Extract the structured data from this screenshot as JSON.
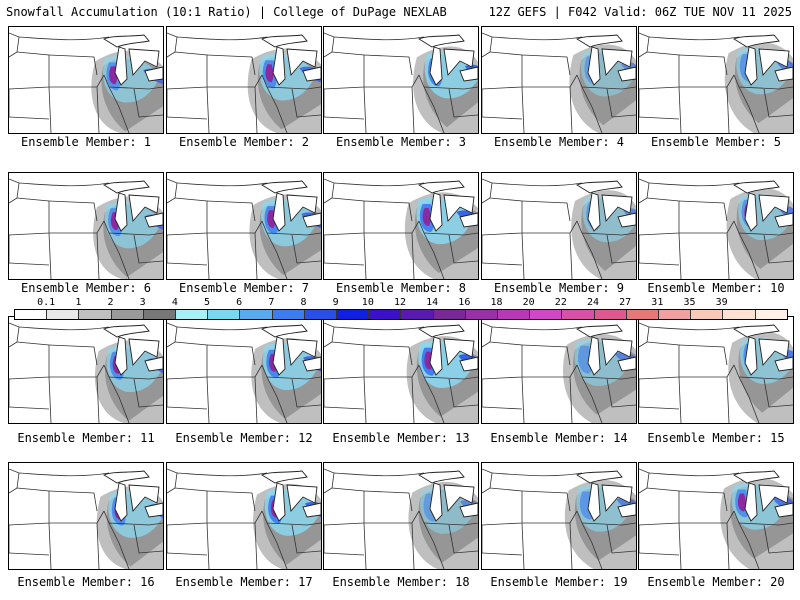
{
  "header": {
    "left_title": "Snowfall Accumulation (10:1 Ratio) | College of DuPage NEXLAB",
    "right_title": "12Z GEFS | F042 Valid: 06Z TUE NOV 11 2025"
  },
  "colorbar": {
    "tick_labels": [
      "0.1",
      "1",
      "2",
      "3",
      "4",
      "5",
      "6",
      "7",
      "8",
      "9",
      "10",
      "12",
      "14",
      "16",
      "18",
      "20",
      "22",
      "24",
      "27",
      "31",
      "35",
      "39"
    ],
    "colors": [
      "#ffffff",
      "#e8e8e8",
      "#c0c0c0",
      "#9a9a9a",
      "#777777",
      "#a8f0f8",
      "#78d8f0",
      "#5aaaf0",
      "#3c7ef0",
      "#2850e8",
      "#1020e0",
      "#3a10c8",
      "#5a1ab0",
      "#7a2898",
      "#9a30a8",
      "#b838b8",
      "#d048c8",
      "#d850a8",
      "#e05890",
      "#e87878",
      "#f0a0a0",
      "#f8c8b8",
      "#fde2d4",
      "#fff0e8"
    ]
  },
  "members": [
    {
      "label": "Ensemble Member: 1"
    },
    {
      "label": "Ensemble Member: 2"
    },
    {
      "label": "Ensemble Member: 3"
    },
    {
      "label": "Ensemble Member: 4"
    },
    {
      "label": "Ensemble Member: 5"
    },
    {
      "label": "Ensemble Member: 6"
    },
    {
      "label": "Ensemble Member: 7"
    },
    {
      "label": "Ensemble Member: 8"
    },
    {
      "label": "Ensemble Member: 9"
    },
    {
      "label": "Ensemble Member: 10"
    },
    {
      "label": "Ensemble Member: 11"
    },
    {
      "label": "Ensemble Member: 12"
    },
    {
      "label": "Ensemble Member: 13"
    },
    {
      "label": "Ensemble Member: 14"
    },
    {
      "label": "Ensemble Member: 15"
    },
    {
      "label": "Ensemble Member: 16"
    },
    {
      "label": "Ensemble Member: 17"
    },
    {
      "label": "Ensemble Member: 18"
    },
    {
      "label": "Ensemble Member: 19"
    },
    {
      "label": "Ensemble Member: 20"
    }
  ]
}
